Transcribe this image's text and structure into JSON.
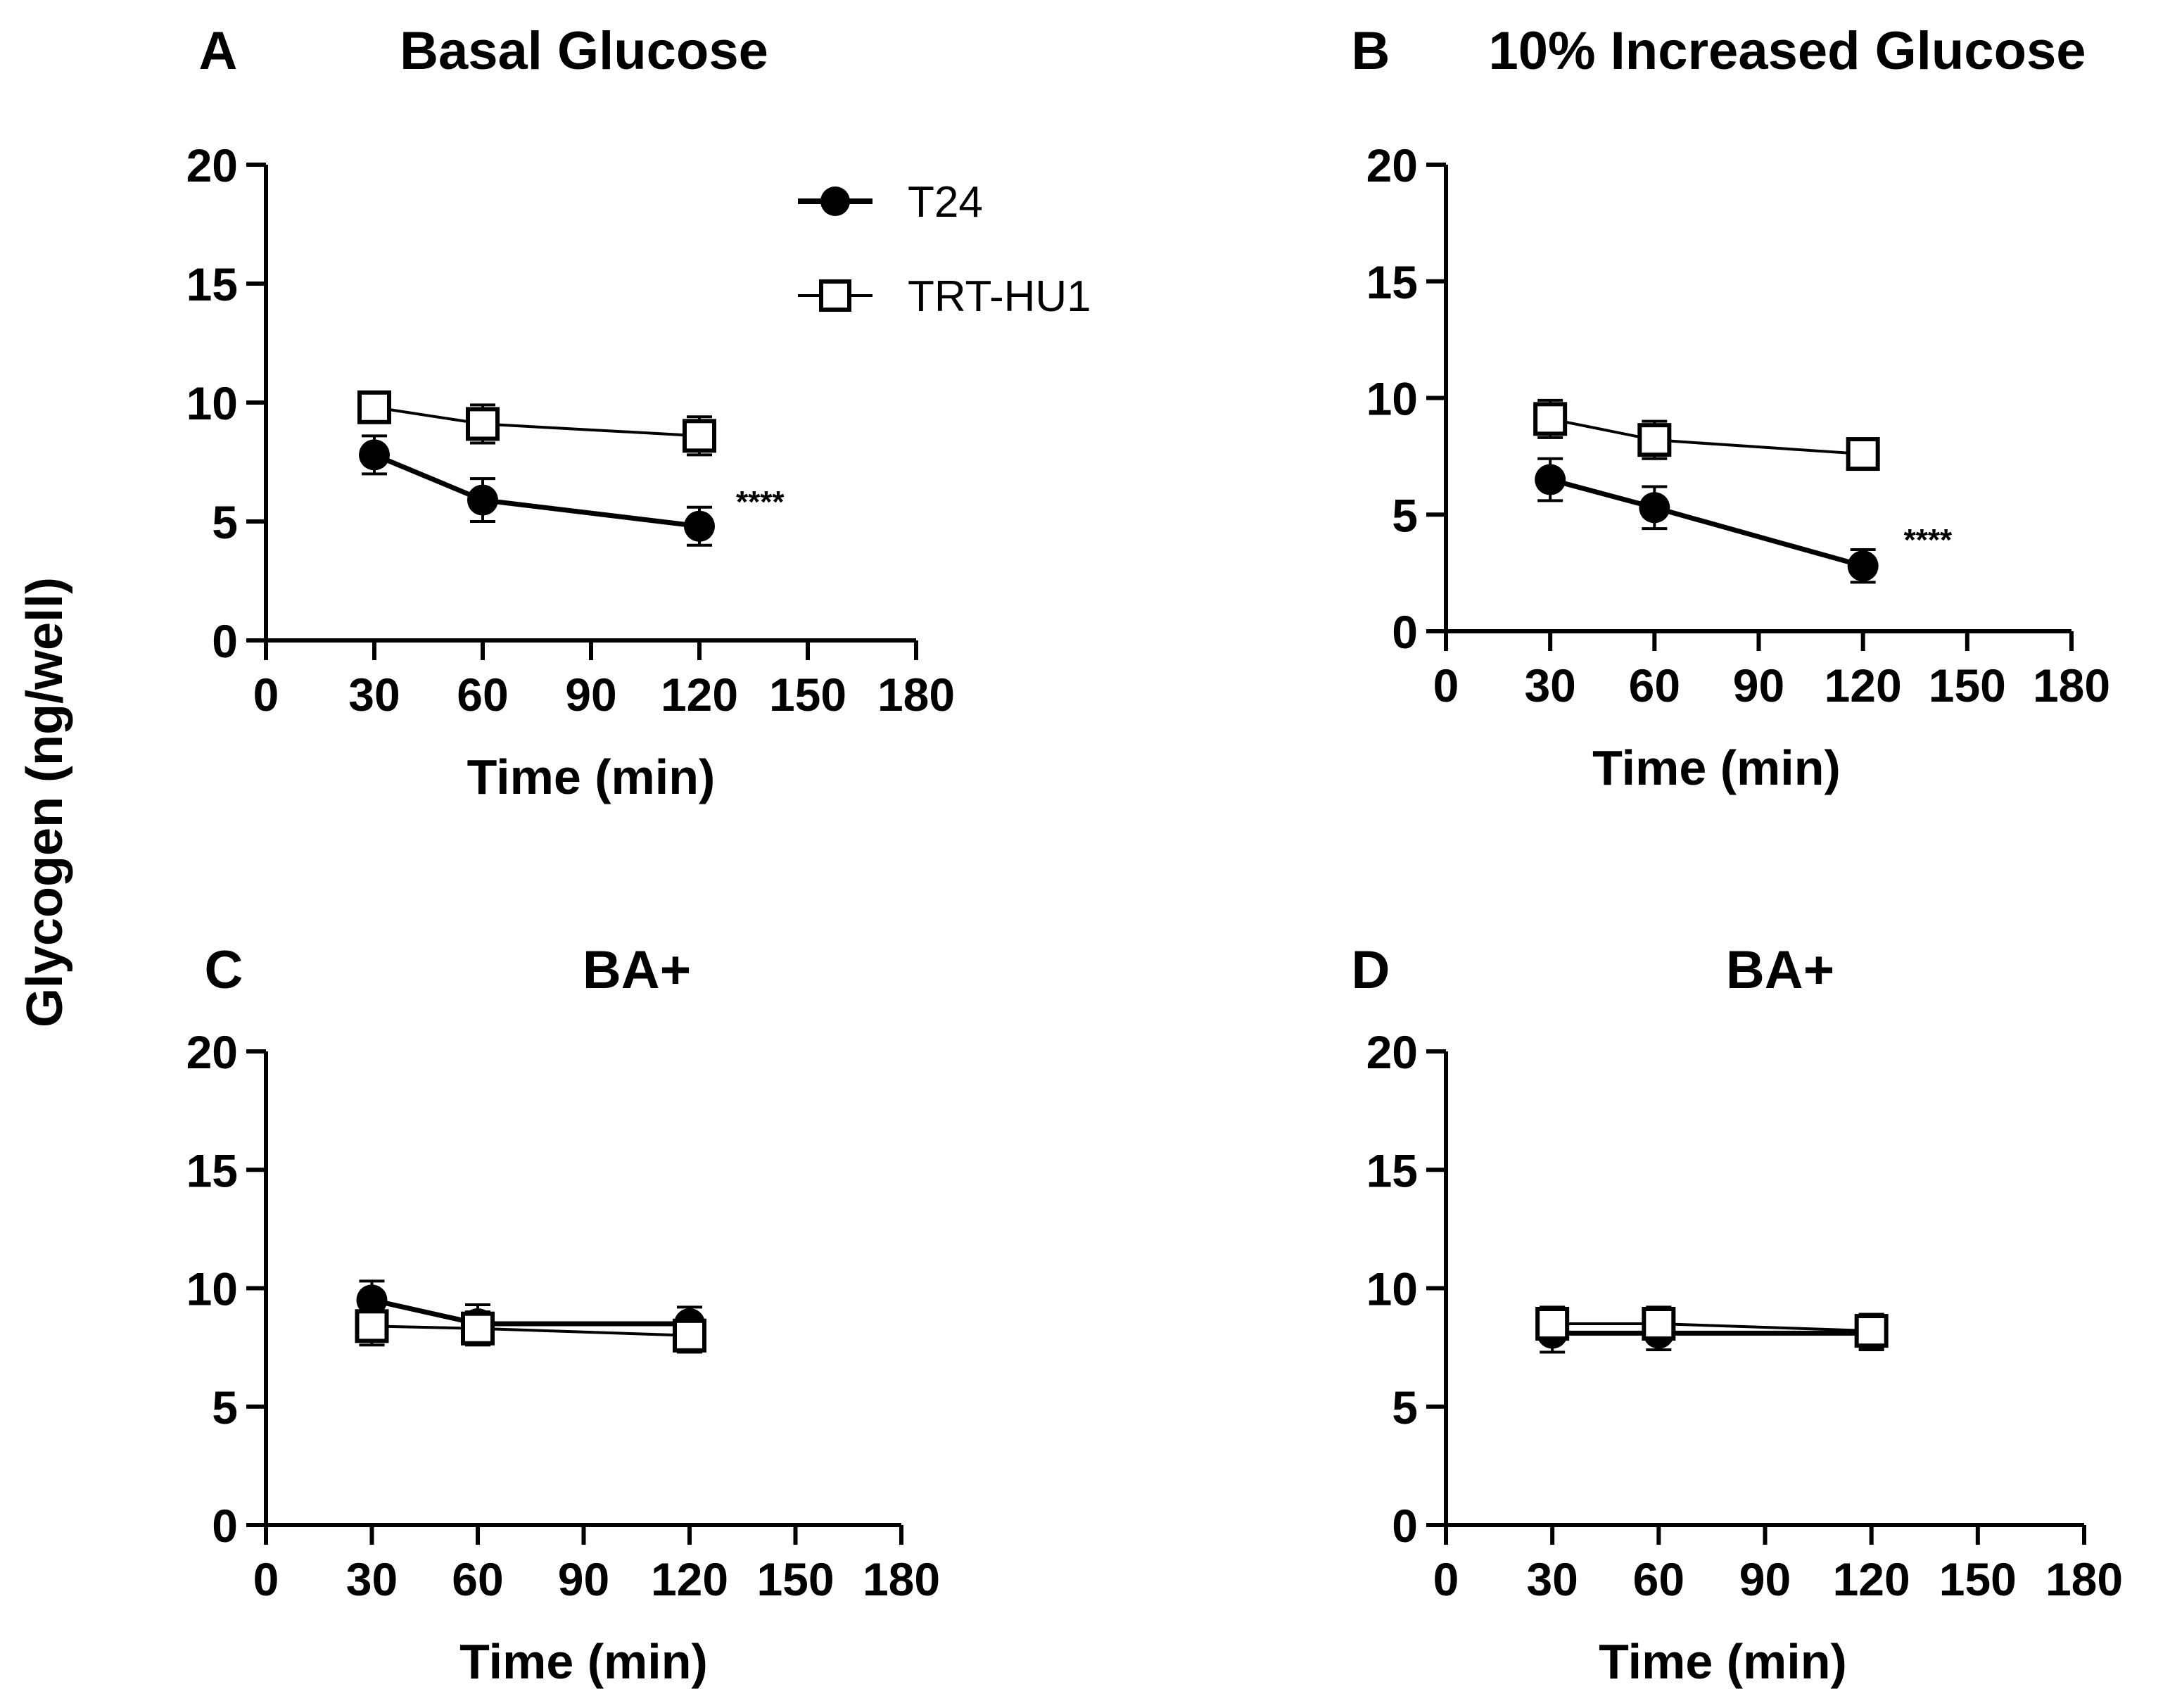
{
  "figure": {
    "y_axis_label": "Glycogen (ng/well)",
    "legend": [
      {
        "name": "T24",
        "marker": "filled-circle"
      },
      {
        "name": "TRT-HU1",
        "marker": "open-square"
      }
    ],
    "colors": {
      "ink": "#000000",
      "background": "#ffffff"
    }
  },
  "chart_data": [
    {
      "panel": "A",
      "type": "line",
      "title": "Basal Glucose",
      "xlabel": "Time (min)",
      "ylabel": "Glycogen (ng/well)",
      "xlim": [
        0,
        180
      ],
      "ylim": [
        0,
        20
      ],
      "x_ticks": [
        0,
        30,
        60,
        90,
        120,
        150,
        180
      ],
      "y_ticks": [
        0,
        5,
        10,
        15,
        20
      ],
      "x": [
        30,
        60,
        120
      ],
      "series": [
        {
          "name": "T24",
          "marker": "filled-circle",
          "values": [
            7.8,
            5.9,
            4.8
          ],
          "error": [
            0.8,
            0.9,
            0.8
          ]
        },
        {
          "name": "TRT-HU1",
          "marker": "open-square",
          "values": [
            9.8,
            9.1,
            8.6
          ],
          "error": [
            0.6,
            0.8,
            0.8
          ]
        }
      ],
      "annotation": "****"
    },
    {
      "panel": "B",
      "type": "line",
      "title": "10% Increased Glucose",
      "xlabel": "Time (min)",
      "ylabel": "Glycogen (ng/well)",
      "xlim": [
        0,
        180
      ],
      "ylim": [
        0,
        20
      ],
      "x_ticks": [
        0,
        30,
        60,
        90,
        120,
        150,
        180
      ],
      "y_ticks": [
        0,
        5,
        10,
        15,
        20
      ],
      "x": [
        30,
        60,
        120
      ],
      "series": [
        {
          "name": "T24",
          "marker": "filled-circle",
          "values": [
            6.5,
            5.3,
            2.8
          ],
          "error": [
            0.9,
            0.9,
            0.7
          ]
        },
        {
          "name": "TRT-HU1",
          "marker": "open-square",
          "values": [
            9.1,
            8.2,
            7.6
          ],
          "error": [
            0.8,
            0.8,
            0.6
          ]
        }
      ],
      "annotation": "****"
    },
    {
      "panel": "C",
      "type": "line",
      "title": "BA+",
      "xlabel": "Time (min)",
      "ylabel": "Glycogen (ng/well)",
      "xlim": [
        0,
        180
      ],
      "ylim": [
        0,
        20
      ],
      "x_ticks": [
        0,
        30,
        60,
        90,
        120,
        150,
        180
      ],
      "y_ticks": [
        0,
        5,
        10,
        15,
        20
      ],
      "x": [
        30,
        60,
        120
      ],
      "series": [
        {
          "name": "T24",
          "marker": "filled-circle",
          "values": [
            9.5,
            8.5,
            8.5
          ],
          "error": [
            0.8,
            0.8,
            0.7
          ]
        },
        {
          "name": "TRT-HU1",
          "marker": "open-square",
          "values": [
            8.4,
            8.3,
            8.0
          ],
          "error": [
            0.8,
            0.7,
            0.7
          ]
        }
      ],
      "annotation": ""
    },
    {
      "panel": "D",
      "type": "line",
      "title": "BA+",
      "xlabel": "Time (min)",
      "ylabel": "Glycogen (ng/well)",
      "xlim": [
        0,
        180
      ],
      "ylim": [
        0,
        20
      ],
      "x_ticks": [
        0,
        30,
        60,
        90,
        120,
        150,
        180
      ],
      "y_ticks": [
        0,
        5,
        10,
        15,
        20
      ],
      "x": [
        30,
        60,
        120
      ],
      "series": [
        {
          "name": "T24",
          "marker": "filled-circle",
          "values": [
            8.1,
            8.1,
            8.1
          ],
          "error": [
            0.8,
            0.7,
            0.7
          ]
        },
        {
          "name": "TRT-HU1",
          "marker": "open-square",
          "values": [
            8.5,
            8.5,
            8.2
          ],
          "error": [
            0.7,
            0.7,
            0.7
          ]
        }
      ],
      "annotation": ""
    }
  ]
}
